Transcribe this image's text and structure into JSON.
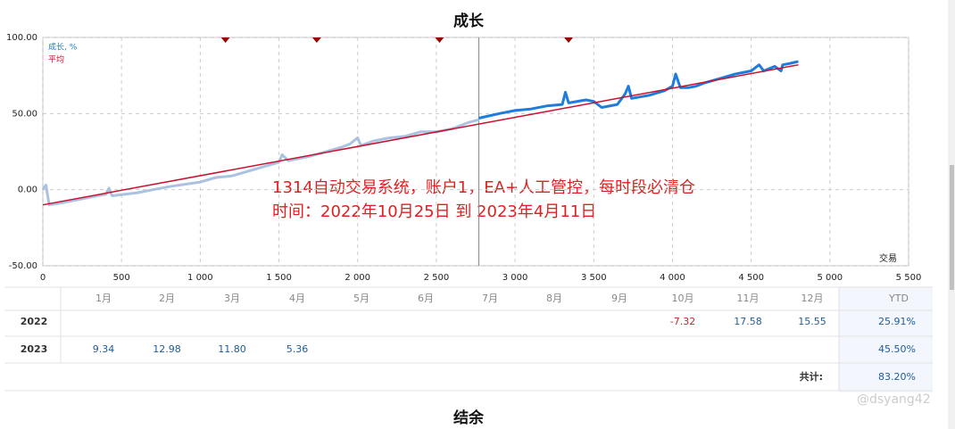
{
  "chart_data": {
    "type": "line",
    "title": "成长",
    "series": [
      {
        "name": "成长, %",
        "color": "#aac2e0",
        "x": [
          0,
          20,
          40,
          100,
          200,
          300,
          400,
          420,
          440,
          600,
          700,
          800,
          1000,
          1100,
          1200,
          1300,
          1400,
          1500,
          1520,
          1560,
          1700,
          1800,
          1900,
          1950,
          2000,
          2020,
          2100,
          2200,
          2300,
          2400,
          2500,
          2600,
          2700,
          2770
        ],
        "values": [
          0,
          3,
          -10,
          -9,
          -7,
          -5,
          -3,
          1,
          -4,
          -2,
          0,
          2,
          5,
          8,
          9,
          12,
          15,
          18,
          23,
          19,
          22,
          25,
          28,
          30,
          34,
          29,
          32,
          34,
          35,
          38,
          38,
          40,
          44,
          46
        ]
      },
      {
        "name": "成长, %",
        "color": "#1e7ddc",
        "x": [
          2770,
          2900,
          3000,
          3100,
          3200,
          3300,
          3320,
          3340,
          3450,
          3500,
          3550,
          3650,
          3700,
          3720,
          3740,
          3850,
          3950,
          4000,
          4020,
          4050,
          4100,
          4150,
          4200,
          4300,
          4400,
          4500,
          4550,
          4580,
          4650,
          4690,
          4700,
          4750,
          4790,
          4800
        ],
        "values": [
          47,
          50,
          52,
          53,
          55,
          56,
          64,
          57,
          59,
          58,
          54,
          56,
          63,
          68,
          60,
          62,
          65,
          68,
          76,
          67,
          67,
          68,
          70,
          73,
          76,
          78,
          82,
          78,
          81,
          78,
          82,
          83,
          84,
          84
        ]
      },
      {
        "name": "平均",
        "color": "#c8102e",
        "x": [
          0,
          4800
        ],
        "values": [
          -10,
          82
        ]
      }
    ],
    "markers": [
      1160,
      1740,
      2520,
      3340
    ],
    "marker_color": "#a00000",
    "x_label": "交易",
    "annotation": [
      "1314自动交易系统，账户1，EA+人工管控，每时段必清仓",
      "时间：2022年10月25日 到 2023年4月11日"
    ],
    "xlim": [
      0,
      5500
    ],
    "ylim": [
      -50,
      100
    ],
    "xticks": [
      0,
      500,
      {
        "value": 1000,
        "label": "1 000"
      },
      {
        "value": 1500,
        "label": "1 500"
      },
      {
        "value": 2000,
        "label": "2 000"
      },
      {
        "value": 2500,
        "label": "2 500"
      },
      {
        "value": 3000,
        "label": "3 000"
      },
      {
        "value": 3500,
        "label": "3 500"
      },
      {
        "value": 4000,
        "label": "4 000"
      },
      {
        "value": 4500,
        "label": "4 500"
      },
      {
        "value": 5000,
        "label": "5 000"
      },
      {
        "value": 5500,
        "label": "5 500"
      }
    ],
    "yticks": [
      {
        "value": -50,
        "label": "-50.00"
      },
      {
        "value": 0,
        "label": "0.00"
      },
      {
        "value": 50,
        "label": "50.00"
      },
      {
        "value": 100,
        "label": "100.00"
      }
    ],
    "grid": true
  },
  "table": {
    "header": [
      "1月",
      "2月",
      "3月",
      "4月",
      "5月",
      "6月",
      "7月",
      "8月",
      "9月",
      "10月",
      "11月",
      "12月",
      "YTD"
    ],
    "rows": [
      [
        "2022",
        null,
        null,
        null,
        null,
        null,
        null,
        null,
        null,
        null,
        "-7.32",
        "17.58",
        "15.55",
        "25.91%"
      ],
      [
        "2023",
        "9.34",
        "12.98",
        "11.80",
        "5.36",
        null,
        null,
        null,
        null,
        null,
        null,
        null,
        null,
        "45.50%"
      ]
    ],
    "total_label": "共计:",
    "total": "83.20%"
  },
  "next_title": "结余",
  "watermark": "@dsyang42"
}
